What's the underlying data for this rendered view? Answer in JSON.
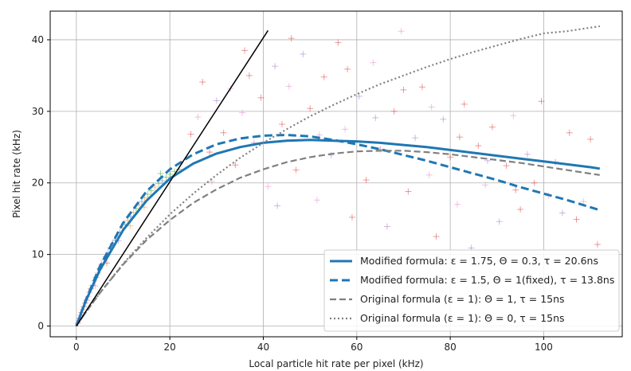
{
  "chart_data": {
    "type": "scatter",
    "xlabel": "Local particle hit rate per pixel (kHz)",
    "ylabel": "Pixel hit rate (kHz)",
    "xlim": [
      -5.6,
      116.8
    ],
    "ylim": [
      -1.5,
      44.0
    ],
    "x_ticks": [
      0,
      20,
      40,
      60,
      80,
      100
    ],
    "y_ticks": [
      0,
      10,
      20,
      30,
      40
    ],
    "grid": true,
    "legend_position": "lower-right",
    "colors": {
      "blue": "#1f77b4",
      "gray": "#808080",
      "black": "#000000",
      "scatter_red": "#d62728",
      "scatter_pink": "#e377c2",
      "scatter_purple": "#9467bd",
      "scatter_orange": "#ff7f0e",
      "scatter_green": "#2ca02c",
      "scatter_blue": "#1f77b4"
    },
    "series": [
      {
        "name": "Modified formula: ε = 1.75, Θ = 0.3, τ = 20.6ns",
        "style": "solid",
        "color": "#1f77b4",
        "x": [
          0,
          2,
          5,
          10,
          15,
          20,
          25,
          30,
          35,
          40,
          45,
          50,
          55,
          60,
          65,
          70,
          75,
          80,
          85,
          90,
          95,
          100,
          105,
          110,
          112
        ],
        "y": [
          0,
          3.5,
          7.8,
          13.4,
          17.5,
          20.6,
          22.7,
          24.1,
          25.0,
          25.6,
          25.9,
          26.0,
          25.9,
          25.8,
          25.6,
          25.3,
          25.0,
          24.6,
          24.2,
          23.8,
          23.4,
          23.0,
          22.6,
          22.2,
          22.0
        ]
      },
      {
        "name": "Modified formula: ε = 1.5, Θ = 1(fixed), τ = 13.8ns",
        "style": "dashed",
        "color": "#1f77b4",
        "x": [
          0,
          2,
          5,
          10,
          15,
          20,
          25,
          30,
          35,
          40,
          45,
          50,
          55,
          60,
          65,
          70,
          75,
          80,
          85,
          90,
          95,
          100,
          105,
          110,
          112
        ],
        "y": [
          0,
          3.6,
          8.3,
          14.4,
          18.8,
          21.9,
          24.0,
          25.4,
          26.2,
          26.6,
          26.7,
          26.5,
          26.0,
          25.4,
          24.7,
          23.9,
          23.1,
          22.2,
          21.3,
          20.4,
          19.4,
          18.5,
          17.6,
          16.6,
          16.2
        ]
      },
      {
        "name": "Original formula (ε = 1): Θ = 1, τ = 15ns",
        "style": "dashed",
        "color": "#808080",
        "x": [
          0,
          2,
          5,
          10,
          15,
          20,
          25,
          30,
          35,
          40,
          45,
          50,
          55,
          60,
          65,
          70,
          75,
          80,
          85,
          90,
          95,
          100,
          105,
          110,
          112
        ],
        "y": [
          0,
          1.9,
          4.6,
          8.6,
          12.0,
          14.8,
          17.2,
          19.1,
          20.7,
          21.9,
          22.9,
          23.6,
          24.1,
          24.4,
          24.5,
          24.5,
          24.3,
          24.0,
          23.6,
          23.2,
          22.8,
          22.3,
          21.8,
          21.3,
          21.1
        ]
      },
      {
        "name": "Original formula (ε = 1): Θ = 0, τ = 15ns",
        "style": "dotted",
        "color": "#808080",
        "x": [
          0,
          2,
          5,
          10,
          15,
          20,
          25,
          30,
          35,
          40,
          45,
          50,
          55,
          60,
          65,
          70,
          75,
          80,
          85,
          90,
          95,
          100,
          105,
          110,
          112
        ],
        "y": [
          0,
          1.9,
          4.6,
          8.7,
          12.3,
          15.6,
          18.5,
          21.1,
          23.5,
          25.6,
          27.5,
          29.3,
          30.9,
          32.4,
          33.8,
          35.0,
          36.2,
          37.3,
          38.3,
          39.2,
          40.1,
          40.9,
          41.2,
          41.7,
          41.9
        ]
      },
      {
        "style": "solid",
        "color": "#000000",
        "x": [
          0,
          41
        ],
        "y": [
          0,
          41.3
        ]
      }
    ],
    "scatter": {
      "marker": "+",
      "points": [
        {
          "x": 0.3,
          "y": 0.4,
          "c": "scatter_red"
        },
        {
          "x": 0.5,
          "y": 0.8,
          "c": "scatter_pink"
        },
        {
          "x": 0.7,
          "y": 1.1,
          "c": "scatter_red"
        },
        {
          "x": 0.9,
          "y": 1.5,
          "c": "scatter_purple"
        },
        {
          "x": 1.1,
          "y": 1.9,
          "c": "scatter_red"
        },
        {
          "x": 1.3,
          "y": 2.3,
          "c": "scatter_pink"
        },
        {
          "x": 1.6,
          "y": 2.7,
          "c": "scatter_red"
        },
        {
          "x": 1.9,
          "y": 3.2,
          "c": "scatter_blue"
        },
        {
          "x": 2.2,
          "y": 3.6,
          "c": "scatter_red"
        },
        {
          "x": 2.5,
          "y": 4.1,
          "c": "scatter_pink"
        },
        {
          "x": 2.8,
          "y": 4.7,
          "c": "scatter_purple"
        },
        {
          "x": 3.1,
          "y": 5.2,
          "c": "scatter_red"
        },
        {
          "x": 3.5,
          "y": 5.7,
          "c": "scatter_blue"
        },
        {
          "x": 3.8,
          "y": 6.3,
          "c": "scatter_pink"
        },
        {
          "x": 4.2,
          "y": 6.8,
          "c": "scatter_red"
        },
        {
          "x": 4.6,
          "y": 7.4,
          "c": "scatter_purple"
        },
        {
          "x": 5.0,
          "y": 8.0,
          "c": "scatter_blue"
        },
        {
          "x": 5.4,
          "y": 8.6,
          "c": "scatter_red"
        },
        {
          "x": 5.9,
          "y": 9.2,
          "c": "scatter_pink"
        },
        {
          "x": 6.3,
          "y": 9.7,
          "c": "scatter_blue"
        },
        {
          "x": 6.8,
          "y": 10.3,
          "c": "scatter_purple"
        },
        {
          "x": 7.3,
          "y": 10.9,
          "c": "scatter_blue"
        },
        {
          "x": 7.8,
          "y": 11.5,
          "c": "scatter_red"
        },
        {
          "x": 8.3,
          "y": 12.0,
          "c": "scatter_blue"
        },
        {
          "x": 8.8,
          "y": 12.6,
          "c": "scatter_pink"
        },
        {
          "x": 9.3,
          "y": 13.1,
          "c": "scatter_blue"
        },
        {
          "x": 9.9,
          "y": 13.7,
          "c": "scatter_orange"
        },
        {
          "x": 10.4,
          "y": 14.2,
          "c": "scatter_blue"
        },
        {
          "x": 11.0,
          "y": 14.8,
          "c": "scatter_orange"
        },
        {
          "x": 11.6,
          "y": 15.3,
          "c": "scatter_blue"
        },
        {
          "x": 12.2,
          "y": 15.9,
          "c": "scatter_orange"
        },
        {
          "x": 12.8,
          "y": 16.4,
          "c": "scatter_green"
        },
        {
          "x": 13.4,
          "y": 16.9,
          "c": "scatter_orange"
        },
        {
          "x": 14.0,
          "y": 17.4,
          "c": "scatter_blue"
        },
        {
          "x": 14.6,
          "y": 17.9,
          "c": "scatter_orange"
        },
        {
          "x": 15.3,
          "y": 18.4,
          "c": "scatter_green"
        },
        {
          "x": 16.0,
          "y": 18.9,
          "c": "scatter_green"
        },
        {
          "x": 16.8,
          "y": 19.4,
          "c": "scatter_orange"
        },
        {
          "x": 17.6,
          "y": 19.9,
          "c": "scatter_green"
        },
        {
          "x": 18.4,
          "y": 20.3,
          "c": "scatter_blue"
        },
        {
          "x": 19.2,
          "y": 20.8,
          "c": "scatter_green"
        },
        {
          "x": 20.1,
          "y": 21.2,
          "c": "scatter_green"
        },
        {
          "x": 21.0,
          "y": 21.6,
          "c": "scatter_green"
        },
        {
          "x": 22.0,
          "y": 21.9,
          "c": "scatter_green"
        },
        {
          "x": 4.0,
          "y": 5.6,
          "c": "scatter_pink"
        },
        {
          "x": 6.5,
          "y": 8.8,
          "c": "scatter_red"
        },
        {
          "x": 9.0,
          "y": 11.9,
          "c": "scatter_purple"
        },
        {
          "x": 11.5,
          "y": 14.0,
          "c": "scatter_orange"
        },
        {
          "x": 14.5,
          "y": 16.6,
          "c": "scatter_orange"
        },
        {
          "x": 18.0,
          "y": 21.3,
          "c": "scatter_green"
        },
        {
          "x": 24.5,
          "y": 26.8,
          "c": "scatter_red"
        },
        {
          "x": 26.0,
          "y": 29.2,
          "c": "scatter_pink"
        },
        {
          "x": 28.5,
          "y": 24.3,
          "c": "scatter_red"
        },
        {
          "x": 30.0,
          "y": 31.5,
          "c": "scatter_purple"
        },
        {
          "x": 31.5,
          "y": 27.0,
          "c": "scatter_red"
        },
        {
          "x": 33.0,
          "y": 33.2,
          "c": "scatter_pink"
        },
        {
          "x": 34.0,
          "y": 22.5,
          "c": "scatter_red"
        },
        {
          "x": 35.5,
          "y": 29.8,
          "c": "scatter_pink"
        },
        {
          "x": 37.0,
          "y": 35.0,
          "c": "scatter_red"
        },
        {
          "x": 38.0,
          "y": 25.6,
          "c": "scatter_purple"
        },
        {
          "x": 39.5,
          "y": 31.9,
          "c": "scatter_red"
        },
        {
          "x": 41.0,
          "y": 19.5,
          "c": "scatter_pink"
        },
        {
          "x": 42.5,
          "y": 36.3,
          "c": "scatter_purple"
        },
        {
          "x": 44.0,
          "y": 28.2,
          "c": "scatter_red"
        },
        {
          "x": 45.5,
          "y": 33.5,
          "c": "scatter_pink"
        },
        {
          "x": 47.0,
          "y": 21.8,
          "c": "scatter_red"
        },
        {
          "x": 48.5,
          "y": 38.0,
          "c": "scatter_purple"
        },
        {
          "x": 50.0,
          "y": 30.4,
          "c": "scatter_red"
        },
        {
          "x": 51.5,
          "y": 17.6,
          "c": "scatter_pink"
        },
        {
          "x": 53.0,
          "y": 34.8,
          "c": "scatter_red"
        },
        {
          "x": 54.5,
          "y": 23.9,
          "c": "scatter_purple"
        },
        {
          "x": 56.0,
          "y": 39.6,
          "c": "scatter_red"
        },
        {
          "x": 57.5,
          "y": 27.5,
          "c": "scatter_pink"
        },
        {
          "x": 59.0,
          "y": 15.2,
          "c": "scatter_red"
        },
        {
          "x": 60.5,
          "y": 32.1,
          "c": "scatter_purple"
        },
        {
          "x": 62.0,
          "y": 20.4,
          "c": "scatter_red"
        },
        {
          "x": 63.5,
          "y": 36.8,
          "c": "scatter_pink"
        },
        {
          "x": 65.0,
          "y": 24.7,
          "c": "scatter_red"
        },
        {
          "x": 66.5,
          "y": 13.9,
          "c": "scatter_purple"
        },
        {
          "x": 68.0,
          "y": 30.0,
          "c": "scatter_red"
        },
        {
          "x": 69.5,
          "y": 41.2,
          "c": "scatter_pink"
        },
        {
          "x": 71.0,
          "y": 18.8,
          "c": "scatter_red"
        },
        {
          "x": 72.5,
          "y": 26.3,
          "c": "scatter_purple"
        },
        {
          "x": 74.0,
          "y": 33.4,
          "c": "scatter_red"
        },
        {
          "x": 75.5,
          "y": 21.1,
          "c": "scatter_pink"
        },
        {
          "x": 77.0,
          "y": 12.5,
          "c": "scatter_red"
        },
        {
          "x": 78.5,
          "y": 28.9,
          "c": "scatter_purple"
        },
        {
          "x": 80.0,
          "y": 23.6,
          "c": "scatter_red"
        },
        {
          "x": 81.5,
          "y": 17.0,
          "c": "scatter_pink"
        },
        {
          "x": 83.0,
          "y": 31.0,
          "c": "scatter_red"
        },
        {
          "x": 84.5,
          "y": 10.9,
          "c": "scatter_purple"
        },
        {
          "x": 86.0,
          "y": 25.2,
          "c": "scatter_red"
        },
        {
          "x": 87.5,
          "y": 19.7,
          "c": "scatter_pink"
        },
        {
          "x": 89.0,
          "y": 27.8,
          "c": "scatter_red"
        },
        {
          "x": 90.5,
          "y": 14.6,
          "c": "scatter_purple"
        },
        {
          "x": 92.0,
          "y": 22.4,
          "c": "scatter_red"
        },
        {
          "x": 93.5,
          "y": 29.4,
          "c": "scatter_pink"
        },
        {
          "x": 95.0,
          "y": 16.3,
          "c": "scatter_red"
        },
        {
          "x": 96.5,
          "y": 24.0,
          "c": "scatter_purple"
        },
        {
          "x": 98.0,
          "y": 20.0,
          "c": "scatter_red"
        },
        {
          "x": 99.5,
          "y": 31.4,
          "c": "scatter_red"
        },
        {
          "x": 101.0,
          "y": 18.2,
          "c": "scatter_pink"
        },
        {
          "x": 102.5,
          "y": 22.9,
          "c": "scatter_red"
        },
        {
          "x": 104.0,
          "y": 15.8,
          "c": "scatter_purple"
        },
        {
          "x": 105.5,
          "y": 27.0,
          "c": "scatter_red"
        },
        {
          "x": 107.0,
          "y": 14.9,
          "c": "scatter_red"
        },
        {
          "x": 108.5,
          "y": 17.4,
          "c": "scatter_pink"
        },
        {
          "x": 110.0,
          "y": 26.1,
          "c": "scatter_red"
        },
        {
          "x": 111.5,
          "y": 11.4,
          "c": "scatter_red"
        },
        {
          "x": 27.0,
          "y": 34.1,
          "c": "scatter_red"
        },
        {
          "x": 29.0,
          "y": 20.2,
          "c": "scatter_pink"
        },
        {
          "x": 36.0,
          "y": 38.5,
          "c": "scatter_red"
        },
        {
          "x": 43.0,
          "y": 16.8,
          "c": "scatter_purple"
        },
        {
          "x": 46.0,
          "y": 40.2,
          "c": "scatter_red"
        },
        {
          "x": 52.0,
          "y": 26.7,
          "c": "scatter_pink"
        },
        {
          "x": 58.0,
          "y": 35.9,
          "c": "scatter_red"
        },
        {
          "x": 64.0,
          "y": 29.1,
          "c": "scatter_purple"
        },
        {
          "x": 70.0,
          "y": 33.0,
          "c": "scatter_red"
        },
        {
          "x": 76.0,
          "y": 30.6,
          "c": "scatter_pink"
        },
        {
          "x": 82.0,
          "y": 26.4,
          "c": "scatter_red"
        },
        {
          "x": 88.0,
          "y": 23.1,
          "c": "scatter_purple"
        },
        {
          "x": 94.0,
          "y": 19.0,
          "c": "scatter_red"
        }
      ]
    }
  }
}
